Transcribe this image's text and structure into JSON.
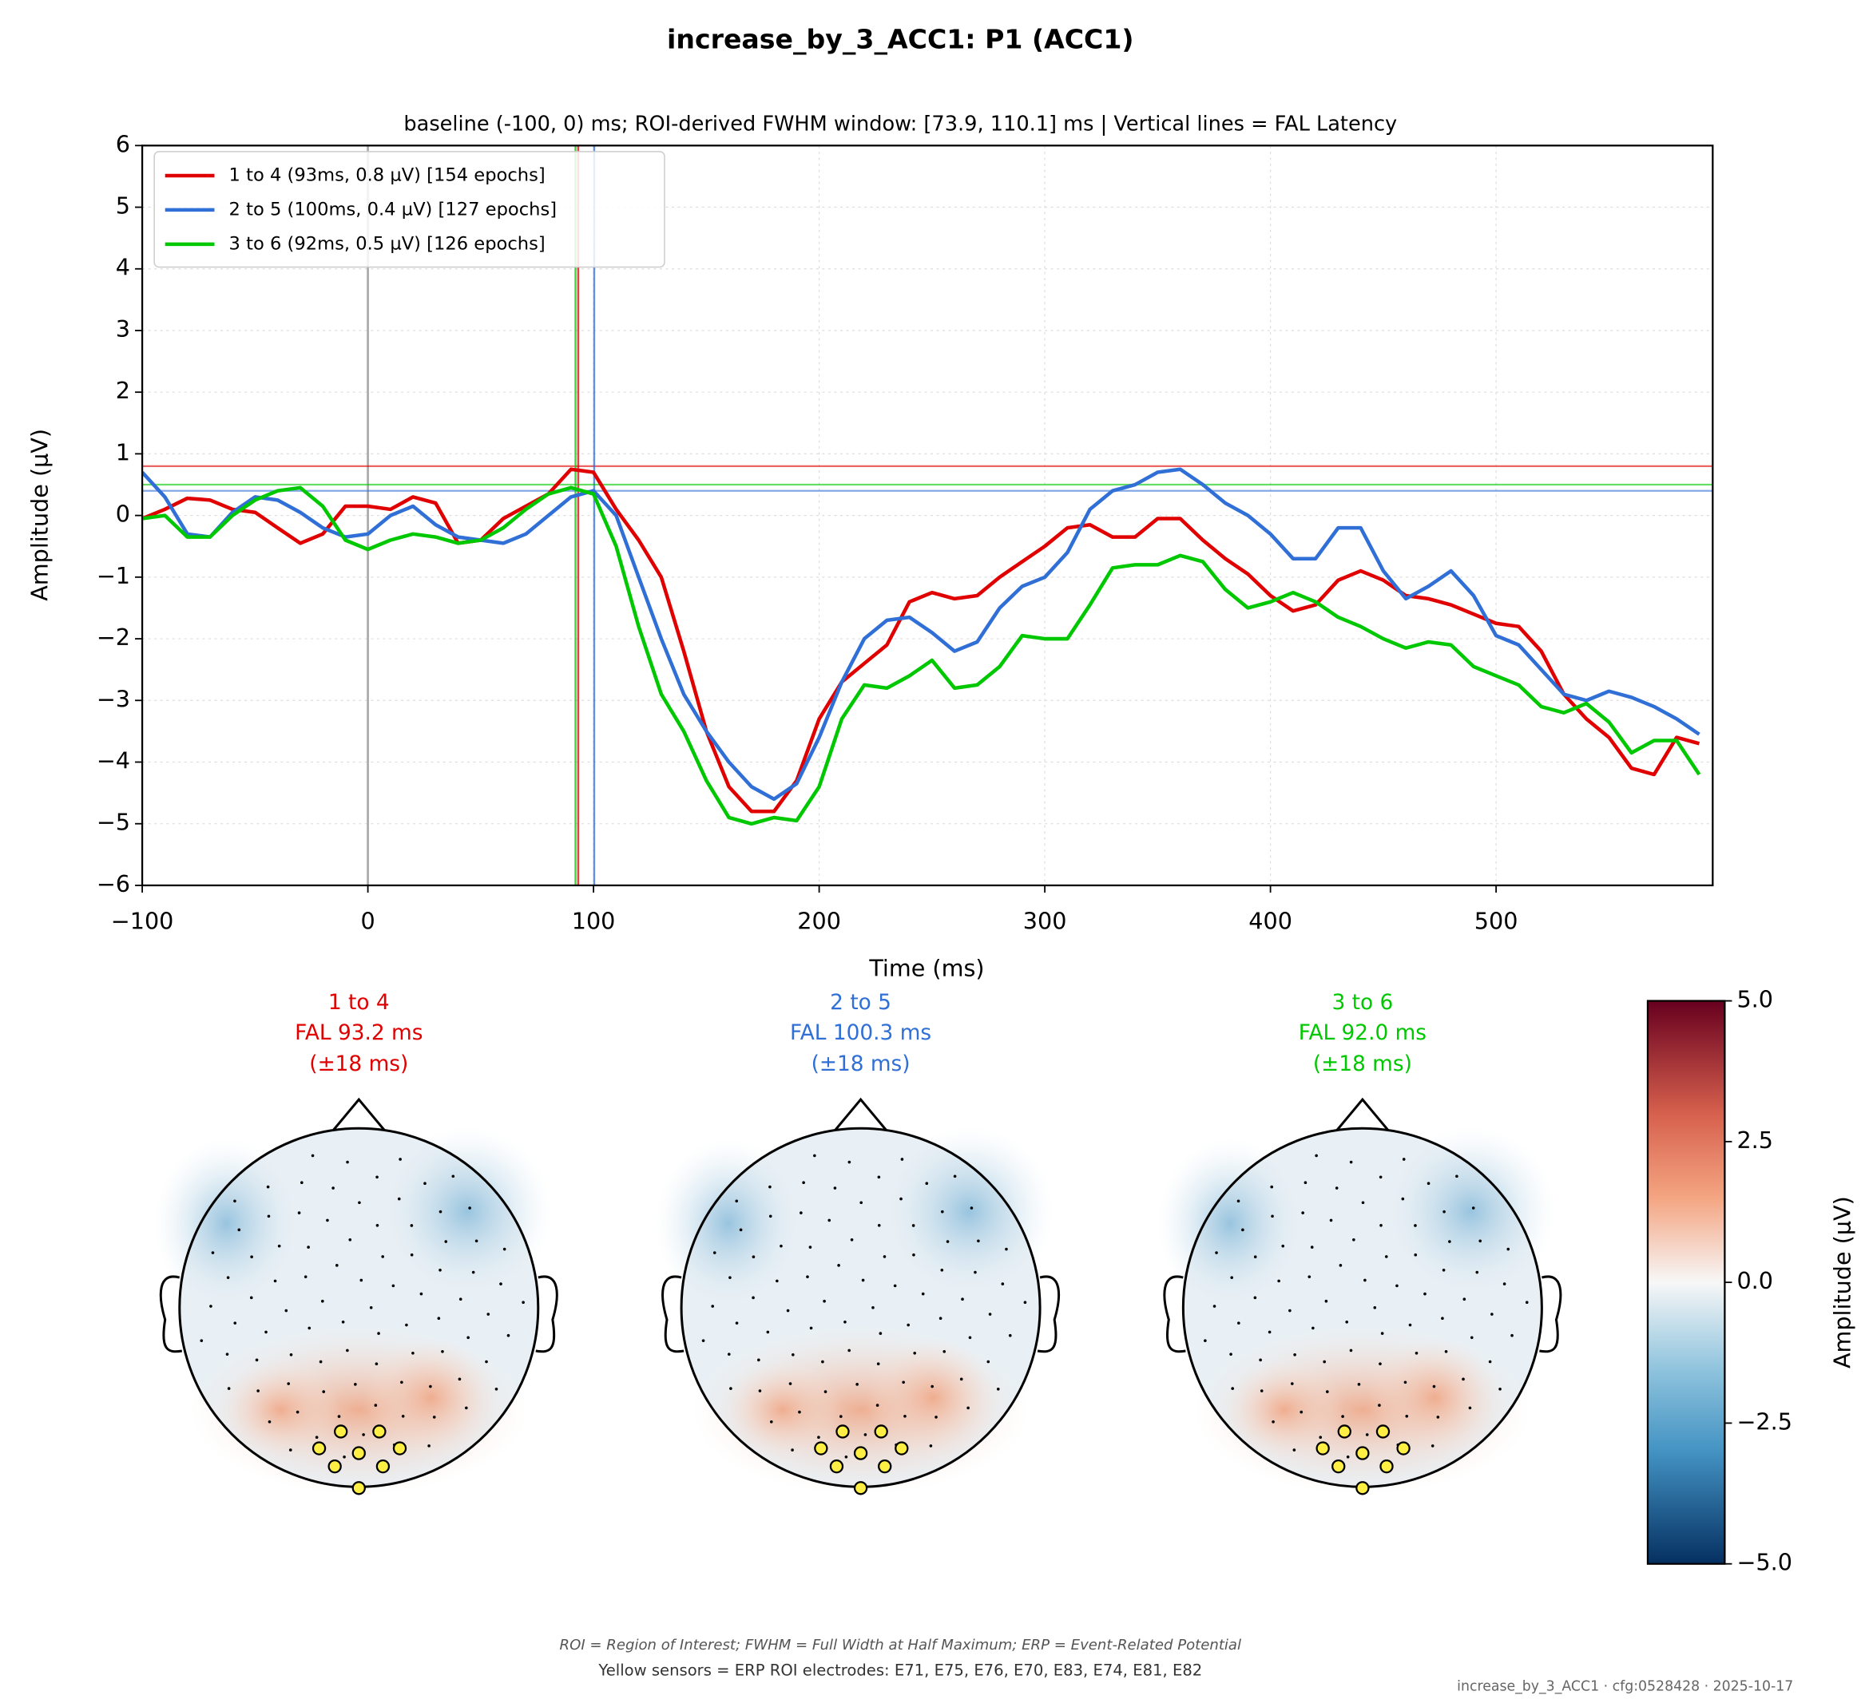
{
  "chart_data": {
    "type": "line",
    "title": "increase_by_3_ACC1: P1 (ACC1)",
    "subtitle": "baseline (-100, 0) ms; ROI-derived FWHM window: [73.9, 110.1] ms | Vertical lines = FAL Latency",
    "x_label": "Time (ms)",
    "y_label": "Amplitude (µV)",
    "xlim": [
      -100,
      596
    ],
    "ylim": [
      -6,
      6
    ],
    "xticks": [
      {
        "value": -100,
        "label": "−100"
      },
      0,
      100,
      200,
      300,
      400,
      500
    ],
    "yticks": [
      {
        "value": -6,
        "label": "−6"
      },
      {
        "value": -5,
        "label": "−5"
      },
      {
        "value": -4,
        "label": "−4"
      },
      {
        "value": -3,
        "label": "−3"
      },
      {
        "value": -2,
        "label": "−2"
      },
      {
        "value": -1,
        "label": "−1"
      },
      0,
      1,
      2,
      3,
      4,
      5,
      6
    ],
    "grid": true,
    "legend": "upper left",
    "reference_x": 0,
    "x": [
      -100,
      -90,
      -80,
      -70,
      -60,
      -50,
      -40,
      -30,
      -20,
      -10,
      0,
      10,
      20,
      30,
      40,
      50,
      60,
      70,
      80,
      90,
      100,
      110,
      120,
      130,
      140,
      150,
      160,
      170,
      180,
      190,
      200,
      210,
      220,
      230,
      240,
      250,
      260,
      270,
      280,
      290,
      300,
      310,
      320,
      330,
      340,
      350,
      360,
      370,
      380,
      390,
      400,
      410,
      420,
      430,
      440,
      450,
      460,
      470,
      480,
      490,
      500,
      510,
      520,
      530,
      540,
      550,
      560,
      570,
      580,
      590
    ],
    "series": [
      {
        "name": "1 to 4 (93ms, 0.8 µV) [154 epochs]",
        "color": "#e00000",
        "fal_ms": 93.2,
        "peak_amplitude": 0.8,
        "values": [
          -0.05,
          0.1,
          0.28,
          0.25,
          0.1,
          0.05,
          -0.2,
          -0.45,
          -0.3,
          0.15,
          0.15,
          0.1,
          0.3,
          0.2,
          -0.45,
          -0.4,
          -0.05,
          0.15,
          0.35,
          0.75,
          0.7,
          0.1,
          -0.4,
          -1.0,
          -2.2,
          -3.5,
          -4.4,
          -4.8,
          -4.8,
          -4.3,
          -3.3,
          -2.7,
          -2.4,
          -2.1,
          -1.4,
          -1.25,
          -1.35,
          -1.3,
          -1.0,
          -0.75,
          -0.5,
          -0.2,
          -0.15,
          -0.35,
          -0.35,
          -0.05,
          -0.05,
          -0.4,
          -0.7,
          -0.95,
          -1.3,
          -1.55,
          -1.45,
          -1.05,
          -0.9,
          -1.05,
          -1.3,
          -1.35,
          -1.45,
          -1.6,
          -1.75,
          -1.8,
          -2.2,
          -2.9,
          -3.3,
          -3.6,
          -4.1,
          -4.2,
          -3.6,
          -3.7
        ]
      },
      {
        "name": "2 to 5 (100ms, 0.4 µV) [127 epochs]",
        "color": "#2f6fd6",
        "fal_ms": 100.3,
        "peak_amplitude": 0.4,
        "values": [
          0.7,
          0.3,
          -0.3,
          -0.35,
          0.05,
          0.3,
          0.25,
          0.05,
          -0.2,
          -0.35,
          -0.3,
          0.0,
          0.15,
          -0.15,
          -0.35,
          -0.4,
          -0.45,
          -0.3,
          0.0,
          0.3,
          0.4,
          0.0,
          -1.0,
          -2.0,
          -2.9,
          -3.5,
          -4.0,
          -4.4,
          -4.6,
          -4.35,
          -3.6,
          -2.7,
          -2.0,
          -1.7,
          -1.65,
          -1.9,
          -2.2,
          -2.05,
          -1.5,
          -1.15,
          -1.0,
          -0.6,
          0.1,
          0.4,
          0.5,
          0.7,
          0.75,
          0.5,
          0.2,
          0.0,
          -0.3,
          -0.7,
          -0.7,
          -0.2,
          -0.2,
          -0.9,
          -1.35,
          -1.15,
          -0.9,
          -1.3,
          -1.95,
          -2.1,
          -2.5,
          -2.9,
          -3.0,
          -2.85,
          -2.95,
          -3.1,
          -3.3,
          -3.55
        ]
      },
      {
        "name": "3 to 6 (92ms, 0.5 µV) [126 epochs]",
        "color": "#00c800",
        "fal_ms": 92.0,
        "peak_amplitude": 0.5,
        "values": [
          -0.05,
          0.0,
          -0.35,
          -0.35,
          0.0,
          0.25,
          0.4,
          0.45,
          0.15,
          -0.4,
          -0.55,
          -0.4,
          -0.3,
          -0.35,
          -0.45,
          -0.4,
          -0.2,
          0.1,
          0.35,
          0.45,
          0.35,
          -0.5,
          -1.8,
          -2.9,
          -3.5,
          -4.3,
          -4.9,
          -5.0,
          -4.9,
          -4.95,
          -4.4,
          -3.3,
          -2.75,
          -2.8,
          -2.6,
          -2.35,
          -2.8,
          -2.75,
          -2.45,
          -1.95,
          -2.0,
          -2.0,
          -1.45,
          -0.85,
          -0.8,
          -0.8,
          -0.65,
          -0.75,
          -1.2,
          -1.5,
          -1.4,
          -1.25,
          -1.4,
          -1.65,
          -1.8,
          -2.0,
          -2.15,
          -2.05,
          -2.1,
          -2.45,
          -2.6,
          -2.75,
          -3.1,
          -3.2,
          -3.05,
          -3.35,
          -3.85,
          -3.65,
          -3.65,
          -4.2
        ]
      }
    ]
  },
  "topomaps": [
    {
      "title": "1 to 4",
      "fal": "FAL 93.2 ms",
      "window": "(±18 ms)",
      "color": "#e00000"
    },
    {
      "title": "2 to 5",
      "fal": "FAL 100.3 ms",
      "window": "(±18 ms)",
      "color": "#2f6fd6"
    },
    {
      "title": "3 to 6",
      "fal": "FAL 92.0 ms",
      "window": "(±18 ms)",
      "color": "#00c800"
    }
  ],
  "colorbar": {
    "label": "Amplitude (µV)",
    "lim": [
      -5,
      5
    ],
    "ticks": [
      {
        "value": 5,
        "label": "5.0"
      },
      {
        "value": 2.5,
        "label": "2.5"
      },
      {
        "value": 0,
        "label": "0.0"
      },
      {
        "value": -2.5,
        "label": "−2.5"
      },
      {
        "value": -5,
        "label": "−5.0"
      }
    ]
  },
  "footer": {
    "note": "ROI = Region of Interest; FWHM = Full Width at Half Maximum; ERP = Event-Related Potential",
    "sensors": "Yellow sensors = ERP ROI electrodes: E71, E75, E76, E70, E83, E74, E81, E82",
    "stamp": "increase_by_3_ACC1 · cfg:0528428 · 2025-10-17"
  }
}
